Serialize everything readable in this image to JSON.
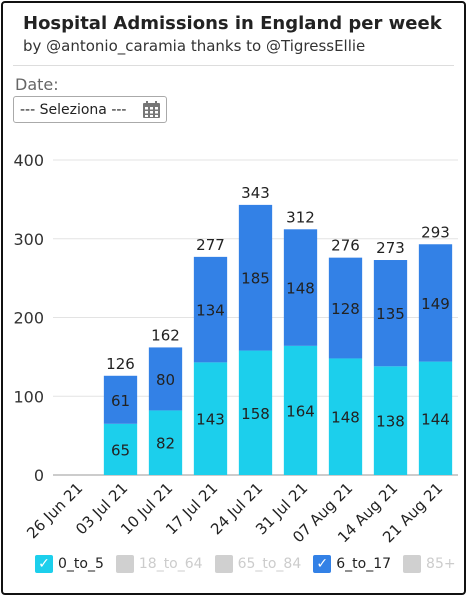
{
  "header": {
    "title": "Hospital Admissions in England per week",
    "subtitle": "by @antonio_caramia thanks to @TigressEllie"
  },
  "filter": {
    "label": "Date:",
    "select_value": "--- Seleziona ---",
    "icon": "calendar-icon"
  },
  "colors": {
    "0_to_5": "#1ccfec",
    "6_to_17": "#3381e6",
    "off": "#d0d0d0"
  },
  "legend": [
    {
      "label": "0_to_5",
      "active": true,
      "color": "#1ccfec"
    },
    {
      "label": "18_to_64",
      "active": false,
      "color": "#d0d0d0"
    },
    {
      "label": "65_to_84",
      "active": false,
      "color": "#d0d0d0"
    },
    {
      "label": "6_to_17",
      "active": true,
      "color": "#3381e6"
    },
    {
      "label": "85+",
      "active": false,
      "color": "#d0d0d0"
    }
  ],
  "chart_data": {
    "type": "bar",
    "stacked": true,
    "categories": [
      "26 Jun 21",
      "03 Jul 21",
      "10 Jul 21",
      "17 Jul 21",
      "24 Jul 21",
      "31 Jul 21",
      "07 Aug 21",
      "14 Aug 21",
      "21 Aug 21"
    ],
    "series": [
      {
        "name": "0_to_5",
        "values": [
          null,
          65,
          82,
          143,
          158,
          164,
          148,
          138,
          144
        ]
      },
      {
        "name": "6_to_17",
        "values": [
          null,
          61,
          80,
          134,
          185,
          148,
          128,
          135,
          149
        ]
      }
    ],
    "totals": [
      null,
      126,
      162,
      277,
      343,
      312,
      276,
      273,
      293
    ],
    "yticks": [
      0,
      100,
      200,
      300,
      400
    ],
    "ylim": [
      0,
      400
    ],
    "legend_position": "bottom"
  }
}
